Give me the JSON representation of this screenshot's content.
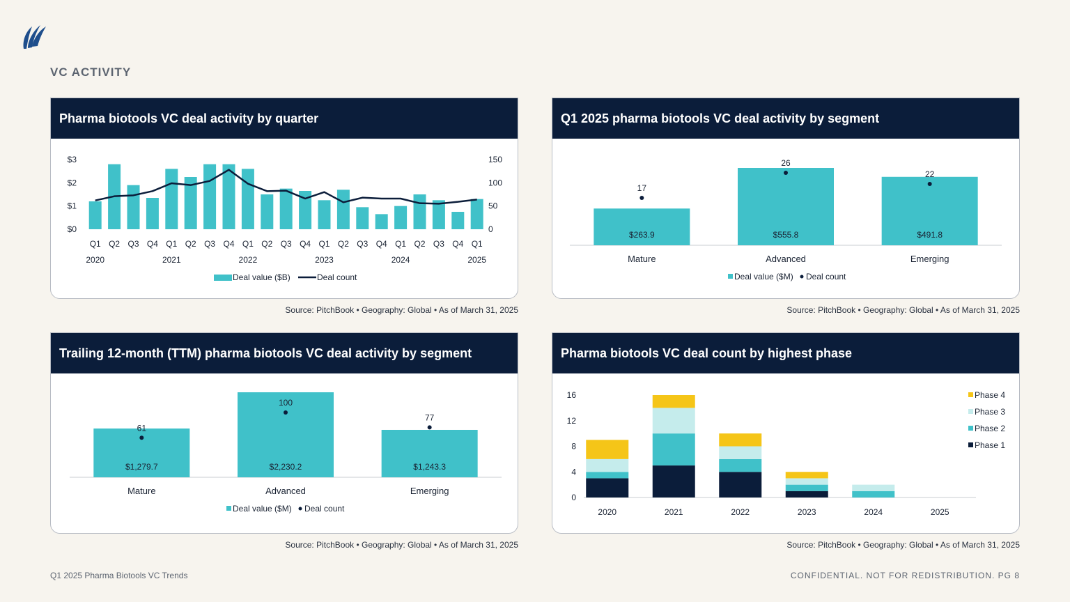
{
  "section_title": "VC ACTIVITY",
  "footer": {
    "left": "Q1 2025 Pharma Biotools VC Trends",
    "right": "CONFIDENTIAL. NOT FOR REDISTRIBUTION.  PG 8"
  },
  "colors": {
    "teal": "#40c1c9",
    "navy": "#0b1d3a",
    "light_teal": "#c5ecec",
    "yellow": "#f5c518",
    "header_bg": "#0b1d3a"
  },
  "chart_data": [
    {
      "id": "quarterly",
      "type": "bar",
      "title": "Pharma biotools VC deal activity by quarter",
      "source": "Source: PitchBook  •  Geography: Global  •  As of March 31, 2025",
      "categories": [
        "Q1",
        "Q2",
        "Q3",
        "Q4",
        "Q1",
        "Q2",
        "Q3",
        "Q4",
        "Q1",
        "Q2",
        "Q3",
        "Q4",
        "Q1",
        "Q2",
        "Q3",
        "Q4",
        "Q1",
        "Q2",
        "Q3",
        "Q4",
        "Q1"
      ],
      "year_labels": [
        "2020",
        "2021",
        "2022",
        "2023",
        "2024",
        "2025"
      ],
      "year_label_index": [
        0,
        4,
        8,
        12,
        16,
        20
      ],
      "series": [
        {
          "name": "Deal value ($B)",
          "type": "bar",
          "axis": "left",
          "values": [
            1.2,
            2.8,
            1.9,
            1.35,
            2.6,
            2.25,
            2.8,
            2.8,
            2.6,
            1.5,
            1.75,
            1.65,
            1.25,
            1.7,
            0.95,
            0.65,
            1.0,
            1.5,
            1.25,
            0.75,
            1.3
          ]
        },
        {
          "name": "Deal count",
          "type": "line",
          "axis": "right",
          "values": [
            62,
            71,
            73,
            82,
            99,
            95,
            104,
            128,
            98,
            82,
            83,
            66,
            80,
            58,
            68,
            66,
            66,
            56,
            55,
            59,
            64
          ]
        }
      ],
      "y_left": {
        "ticks": [
          "$0",
          "$1",
          "$2",
          "$3"
        ],
        "lim": [
          0,
          3
        ]
      },
      "y_right": {
        "ticks": [
          "0",
          "50",
          "100",
          "150"
        ],
        "lim": [
          0,
          150
        ]
      },
      "legend": [
        "Deal value ($B)",
        "Deal count"
      ]
    },
    {
      "id": "q1_segment",
      "type": "bar",
      "title": "Q1 2025 pharma biotools VC deal activity by segment",
      "source": "Source: PitchBook  •  Geography: Global  •  As of March 31, 2025",
      "categories": [
        "Mature",
        "Advanced",
        "Emerging"
      ],
      "series": [
        {
          "name": "Deal value ($M)",
          "type": "bar",
          "values": [
            263.9,
            555.8,
            491.8
          ],
          "labels": [
            "$263.9",
            "$555.8",
            "$491.8"
          ]
        },
        {
          "name": "Deal count",
          "type": "dot",
          "values": [
            17,
            26,
            22
          ],
          "labels": [
            "17",
            "26",
            "22"
          ]
        }
      ],
      "legend": [
        "Deal value ($M)",
        "Deal count"
      ]
    },
    {
      "id": "ttm_segment",
      "type": "bar",
      "title": "Trailing 12-month (TTM) pharma biotools VC deal activity by segment",
      "source": "Source: PitchBook  •  Geography: Global  •  As of March 31, 2025",
      "categories": [
        "Mature",
        "Advanced",
        "Emerging"
      ],
      "series": [
        {
          "name": "Deal value ($M)",
          "type": "bar",
          "values": [
            1279.7,
            2230.2,
            1243.3
          ],
          "labels": [
            "$1,279.7",
            "$2,230.2",
            "$1,243.3"
          ]
        },
        {
          "name": "Deal count",
          "type": "dot",
          "values": [
            61,
            100,
            77
          ],
          "labels": [
            "61",
            "100",
            "77"
          ]
        }
      ],
      "legend": [
        "Deal value ($M)",
        "Deal count"
      ]
    },
    {
      "id": "phase",
      "type": "bar",
      "stacked": true,
      "title": "Pharma biotools VC deal count by highest phase",
      "source": "Source: PitchBook  •  Geography: Global  •  As of March 31, 2025",
      "categories": [
        "2020",
        "2021",
        "2022",
        "2023",
        "2024",
        "2025"
      ],
      "series": [
        {
          "name": "Phase 1",
          "color": "#0b1d3a",
          "values": [
            3,
            5,
            4,
            1,
            0,
            0
          ]
        },
        {
          "name": "Phase 2",
          "color": "#40c1c9",
          "values": [
            1,
            5,
            2,
            1,
            1,
            0
          ]
        },
        {
          "name": "Phase 3",
          "color": "#c5ecec",
          "values": [
            2,
            4,
            2,
            1,
            1,
            0
          ]
        },
        {
          "name": "Phase 4",
          "color": "#f5c518",
          "values": [
            3,
            2,
            2,
            1,
            0,
            0
          ]
        }
      ],
      "y": {
        "ticks": [
          "0",
          "4",
          "8",
          "12",
          "16"
        ],
        "lim": [
          0,
          16
        ]
      },
      "legend": [
        "Phase 4",
        "Phase 3",
        "Phase 2",
        "Phase 1"
      ]
    }
  ]
}
